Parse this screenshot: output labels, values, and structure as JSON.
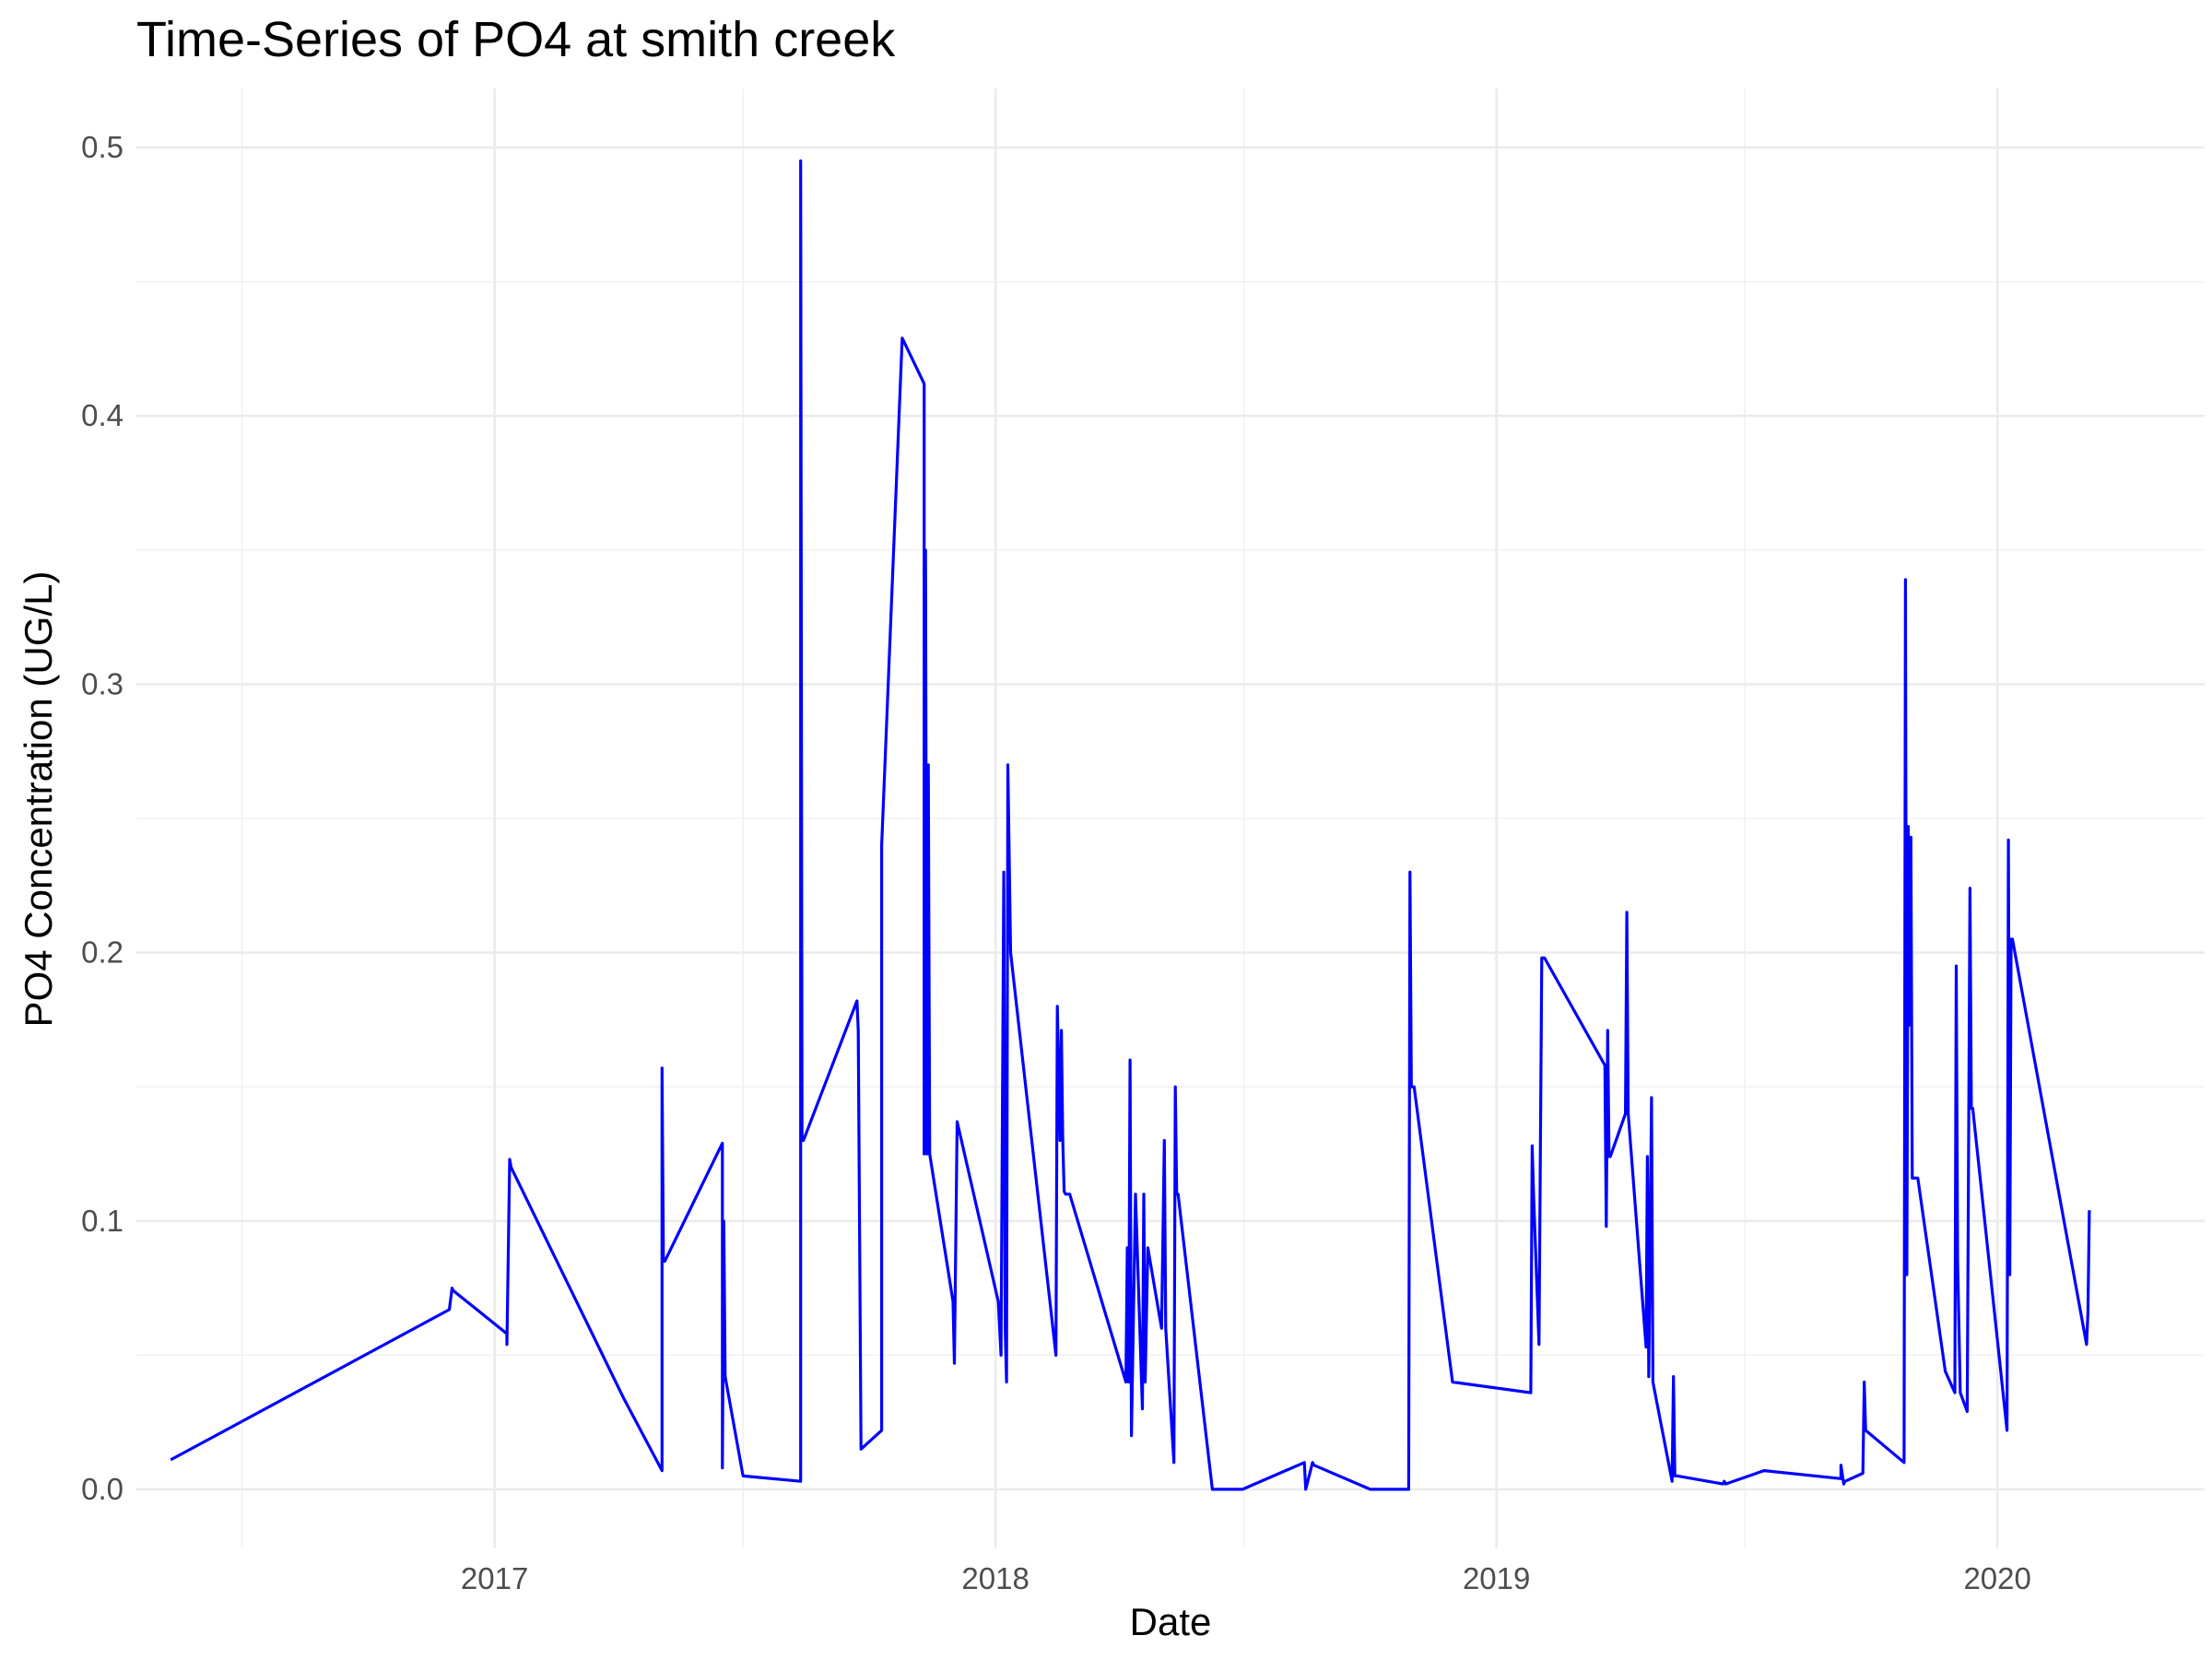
{
  "chart_data": {
    "type": "line",
    "title": "Time-Series of PO4 at smith creek",
    "xlabel": "Date",
    "ylabel": "PO4 Concentration (UG/L)",
    "x_ticks": [
      "2017",
      "2018",
      "2019",
      "2020"
    ],
    "y_ticks": [
      "0.0",
      "0.1",
      "0.2",
      "0.3",
      "0.4",
      "0.5"
    ],
    "xlim": [
      "2016-04-15",
      "2020-05-31"
    ],
    "ylim": [
      -0.022,
      0.522
    ],
    "grid": true,
    "line_color": "#0000ff",
    "series": [
      {
        "x": [
          "2016-05-10",
          "2016-11-29",
          "2016-12-01",
          "2016-12-02",
          "2017-01-10",
          "2017-01-10",
          "2017-01-12",
          "2017-01-13",
          "2017-04-05",
          "2017-05-03",
          "2017-05-03",
          "2017-05-04",
          "2017-05-05",
          "2017-06-16",
          "2017-06-16",
          "2017-06-17",
          "2017-06-18",
          "2017-07-01",
          "2017-08-12",
          "2017-08-12",
          "2017-08-13",
          "2017-08-14",
          "2017-09-22",
          "2017-09-23",
          "2017-09-25",
          "2017-10-10",
          "2017-10-10",
          "2017-10-25",
          "2017-11-10",
          "2017-11-10",
          "2017-11-11",
          "2017-11-12",
          "2017-11-13",
          "2017-11-14",
          "2017-12-01",
          "2017-12-02",
          "2017-12-04",
          "2018-01-03",
          "2018-01-04",
          "2018-01-05",
          "2018-01-07",
          "2018-01-08",
          "2018-01-09",
          "2018-01-10",
          "2018-01-12",
          "2018-02-14",
          "2018-02-15",
          "2018-02-17",
          "2018-02-18",
          "2018-02-19",
          "2018-02-20",
          "2018-02-21",
          "2018-02-24",
          "2018-04-06",
          "2018-04-07",
          "2018-04-08",
          "2018-04-09",
          "2018-04-10",
          "2018-04-13",
          "2018-04-18",
          "2018-04-19",
          "2018-04-20",
          "2018-04-22",
          "2018-05-02",
          "2018-05-04",
          "2018-05-05",
          "2018-05-11",
          "2018-05-12",
          "2018-05-13",
          "2018-05-14",
          "2018-06-08",
          "2018-06-30",
          "2018-08-14",
          "2018-08-15",
          "2018-08-20",
          "2018-08-21",
          "2018-10-01",
          "2018-10-29",
          "2018-10-30",
          "2018-10-31",
          "2018-11-01",
          "2018-11-02",
          "2018-11-30",
          "2019-01-26",
          "2019-01-27",
          "2019-01-28",
          "2019-02-01",
          "2019-02-03",
          "2019-02-04",
          "2019-02-05",
          "2019-03-21",
          "2019-03-22",
          "2019-03-23",
          "2019-03-24",
          "2019-03-25",
          "2019-04-05",
          "2019-04-06",
          "2019-04-07",
          "2019-04-20",
          "2019-04-21",
          "2019-04-22",
          "2019-04-24",
          "2019-04-25",
          "2019-05-09",
          "2019-05-10",
          "2019-05-11",
          "2019-05-13",
          "2019-06-15",
          "2019-06-16",
          "2019-06-17",
          "2019-07-15",
          "2019-09-09",
          "2019-09-09",
          "2019-09-11",
          "2019-09-12",
          "2019-09-25",
          "2019-09-26",
          "2019-09-27",
          "2019-10-25",
          "2019-10-26",
          "2019-10-27",
          "2019-10-28",
          "2019-10-29",
          "2019-10-30",
          "2019-10-31",
          "2019-11-01",
          "2019-11-02",
          "2019-11-03",
          "2019-11-04",
          "2019-11-24",
          "2019-12-01",
          "2019-12-02",
          "2019-12-03",
          "2019-12-05",
          "2019-12-10",
          "2019-12-12",
          "2019-12-13",
          "2019-12-14",
          "2020-01-08",
          "2020-01-09",
          "2020-01-10",
          "2020-01-11",
          "2020-01-12",
          "2020-03-06",
          "2020-03-07",
          "2020-03-08"
        ],
        "y": [
          0.011,
          0.067,
          0.075,
          0.074,
          0.058,
          0.054,
          0.123,
          0.12,
          0.034,
          0.007,
          0.157,
          0.085,
          0.085,
          0.129,
          0.008,
          0.1,
          0.042,
          0.005,
          0.003,
          0.495,
          0.13,
          0.13,
          0.182,
          0.171,
          0.015,
          0.022,
          0.24,
          0.429,
          0.412,
          0.125,
          0.35,
          0.125,
          0.27,
          0.125,
          0.07,
          0.047,
          0.137,
          0.07,
          0.06,
          0.05,
          0.23,
          0.06,
          0.04,
          0.27,
          0.2,
          0.05,
          0.18,
          0.13,
          0.171,
          0.13,
          0.111,
          0.11,
          0.11,
          0.04,
          0.09,
          0.04,
          0.16,
          0.02,
          0.11,
          0.03,
          0.11,
          0.04,
          0.09,
          0.06,
          0.13,
          0.06,
          0.01,
          0.15,
          0.11,
          0.11,
          0.0,
          0.0,
          0.01,
          0.0,
          0.01,
          0.009,
          0.0,
          0.0,
          0.23,
          0.15,
          0.15,
          0.15,
          0.04,
          0.036,
          0.128,
          0.11,
          0.054,
          0.198,
          0.198,
          0.198,
          0.158,
          0.098,
          0.171,
          0.124,
          0.124,
          0.14,
          0.215,
          0.14,
          0.053,
          0.124,
          0.042,
          0.146,
          0.04,
          0.003,
          0.042,
          0.005,
          0.005,
          0.002,
          0.003,
          0.002,
          0.007,
          0.004,
          0.009,
          0.002,
          0.003,
          0.006,
          0.04,
          0.022,
          0.01,
          0.339,
          0.08,
          0.247,
          0.173,
          0.243,
          0.116,
          0.116,
          0.116,
          0.116,
          0.116,
          0.044,
          0.036,
          0.195,
          0.085,
          0.036,
          0.029,
          0.224,
          0.142,
          0.142,
          0.022,
          0.242,
          0.08,
          0.205,
          0.205,
          0.054,
          0.066,
          0.104
        ]
      }
    ]
  }
}
